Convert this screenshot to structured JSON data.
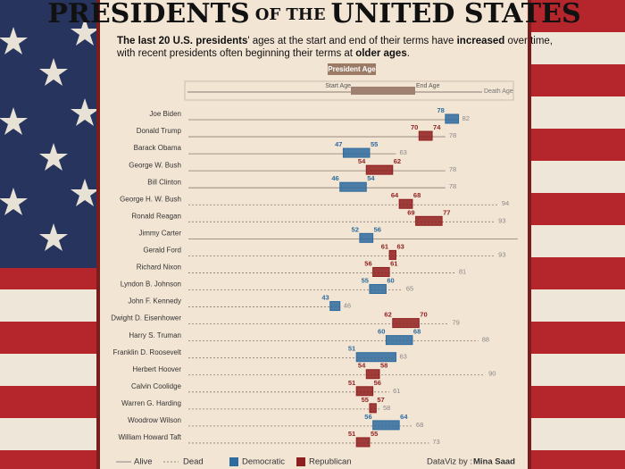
{
  "title_parts": [
    "PRESIDENTS",
    "OF THE",
    "UNITED STATES"
  ],
  "subtitle_parts": [
    {
      "text": "The last 20 U.S. presidents",
      "bold": true
    },
    {
      "text": "' ages at the start and end of their terms have ",
      "bold": false
    },
    {
      "text": "increased",
      "bold": true
    },
    {
      "text": " over time,",
      "bold": false
    },
    {
      "text": "with recent presidents often beginning their terms at ",
      "bold": false
    },
    {
      "text": "older ages",
      "bold": true
    },
    {
      "text": ".",
      "bold": false
    }
  ],
  "key": {
    "title": "President Age",
    "start": "Start Age",
    "end": "End Age",
    "death": "Death Age"
  },
  "chart_data": {
    "type": "range",
    "xlim": [
      0,
      100
    ],
    "categories": [
      "Joe Biden",
      "Donald Trump",
      "Barack Obama",
      "George W. Bush",
      "Bill Clinton",
      "George H. W. Bush",
      "Ronald Reagan",
      "Jimmy Carter",
      "Gerald Ford",
      "Richard Nixon",
      "Lyndon B. Johnson",
      "John F. Kennedy",
      "Dwight D. Eisenhower",
      "Harry S. Truman",
      "Franklin D. Roosevelt",
      "Herbert Hoover",
      "Calvin Coolidge",
      "Warren G. Harding",
      "Woodrow Wilson",
      "William Howard Taft"
    ],
    "start_ages": [
      78,
      70,
      47,
      54,
      46,
      64,
      69,
      52,
      61,
      56,
      55,
      43,
      62,
      60,
      51,
      54,
      51,
      55,
      56,
      51
    ],
    "end_ages": [
      82,
      74,
      55,
      62,
      54,
      68,
      77,
      56,
      63,
      61,
      60,
      46,
      70,
      68,
      63,
      58,
      56,
      57,
      64,
      55
    ],
    "ages": [
      82,
      78,
      63,
      78,
      78,
      94,
      93,
      null,
      93,
      81,
      65,
      46,
      79,
      88,
      63,
      90,
      61,
      58,
      68,
      73
    ],
    "parties": [
      "Democratic",
      "Republican",
      "Democratic",
      "Republican",
      "Democratic",
      "Republican",
      "Republican",
      "Democratic",
      "Republican",
      "Republican",
      "Democratic",
      "Democratic",
      "Republican",
      "Democratic",
      "Democratic",
      "Republican",
      "Republican",
      "Republican",
      "Democratic",
      "Republican"
    ],
    "alive": [
      true,
      true,
      true,
      true,
      true,
      false,
      false,
      true,
      false,
      false,
      false,
      false,
      false,
      false,
      false,
      false,
      false,
      false,
      false,
      false
    ],
    "party_colors": {
      "Democratic": "#2e6b9e",
      "Republican": "#8e1f1f"
    },
    "legend": {
      "alive": "Alive",
      "dead": "Dead",
      "dem": "Democratic",
      "rep": "Republican"
    }
  },
  "credit": {
    "label": "DataViz by :",
    "author": "Mina Saad"
  }
}
